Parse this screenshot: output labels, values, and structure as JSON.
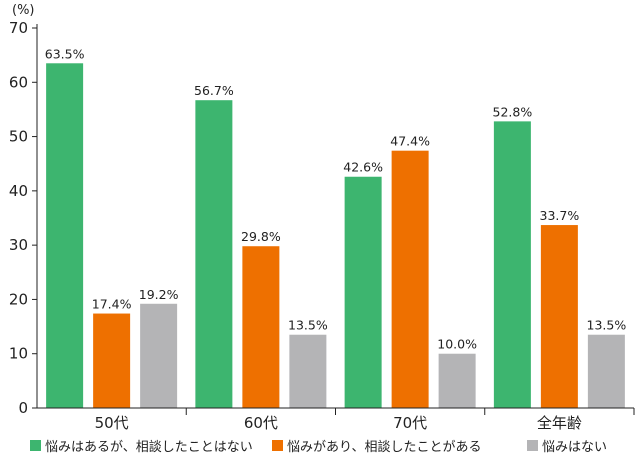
{
  "chart_data": {
    "type": "bar",
    "ylabel": "(%)",
    "ylim": [
      0,
      70
    ],
    "yticks": [
      0,
      10,
      20,
      30,
      40,
      50,
      60,
      70
    ],
    "categories": [
      "50代",
      "60代",
      "70代",
      "全年齢"
    ],
    "series": [
      {
        "name": "悩みはあるが、相談したことはない",
        "color": "#3db56f",
        "values": [
          63.5,
          56.7,
          42.6,
          52.8
        ],
        "labels": [
          "63.5%",
          "56.7%",
          "42.6%",
          "52.8%"
        ]
      },
      {
        "name": "悩みがあり、相談したことがある",
        "color": "#ee7000",
        "values": [
          17.4,
          29.8,
          47.4,
          33.7
        ],
        "labels": [
          "17.4%",
          "29.8%",
          "47.4%",
          "33.7%"
        ]
      },
      {
        "name": "悩みはない",
        "color": "#b4b4b6",
        "values": [
          19.2,
          13.5,
          10.0,
          13.5
        ],
        "labels": [
          "19.2%",
          "13.5%",
          "10.0%",
          "13.5%"
        ]
      }
    ],
    "grid": false,
    "legend": "bottom"
  }
}
